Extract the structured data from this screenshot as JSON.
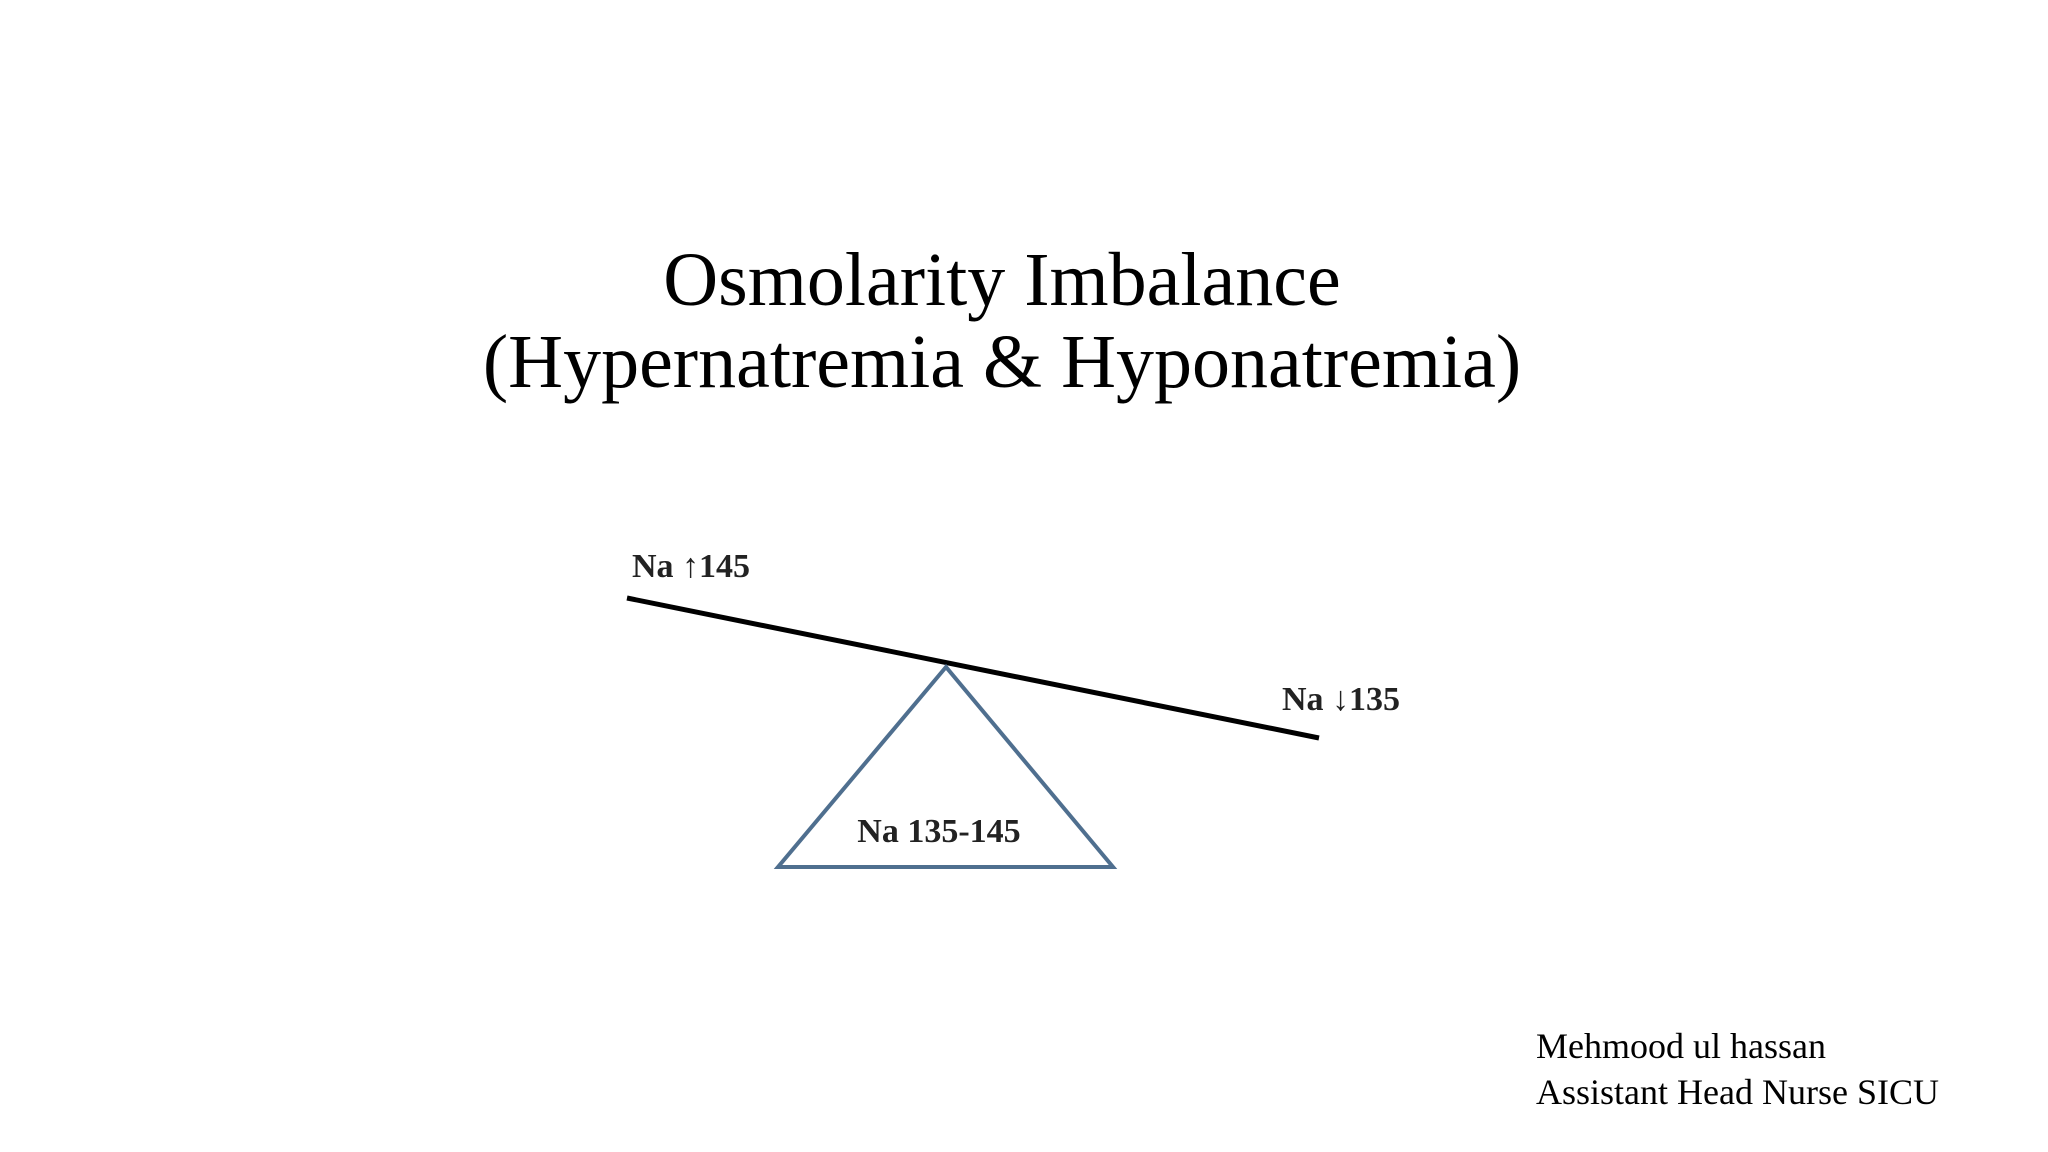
{
  "title": {
    "line1": "Osmolarity Imbalance",
    "line2": "(Hypernatremia & Hyponatremia)"
  },
  "diagram": {
    "left_label": "Na ↑145",
    "right_label": "Na ↓135",
    "base_label": "Na 135-145"
  },
  "author": {
    "name": "Mehmood ul hassan",
    "role": "Assistant Head Nurse SICU"
  }
}
